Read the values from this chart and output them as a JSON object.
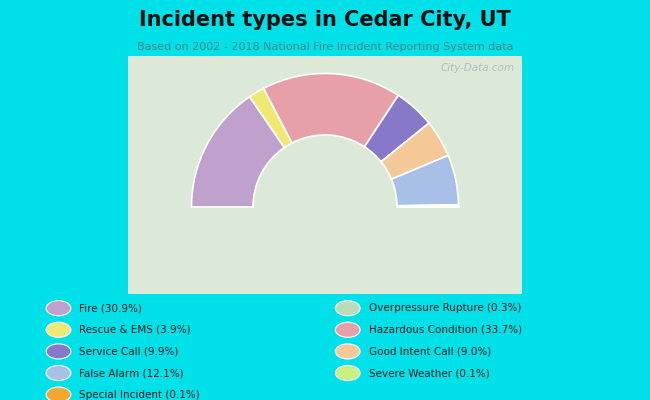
{
  "title": "Incident types in Cedar City, UT",
  "subtitle": "Based on 2002 - 2018 National Fire Incident Reporting System data",
  "background_outer": "#00e0e8",
  "background_chart_tl": "#e8ede0",
  "background_chart_tr": "#d8e8d8",
  "segments": [
    {
      "label": "Fire (30.9%)",
      "value": 30.9,
      "color": "#c0a0cc"
    },
    {
      "label": "Rescue & EMS (3.9%)",
      "value": 3.9,
      "color": "#f0e870"
    },
    {
      "label": "Hazardous Condition (33.7%)",
      "value": 33.7,
      "color": "#e8a0a8"
    },
    {
      "label": "Overpressure Rupture (0.3%)",
      "value": 0.3,
      "color": "#b8ddb8"
    },
    {
      "label": "Service Call (9.9%)",
      "value": 9.9,
      "color": "#8878c8"
    },
    {
      "label": "Good Intent Call (9.0%)",
      "value": 9.0,
      "color": "#f5c898"
    },
    {
      "label": "False Alarm (12.1%)",
      "value": 12.1,
      "color": "#a8c0e8"
    },
    {
      "label": "Severe Weather (0.1%)",
      "value": 0.1,
      "color": "#c8f080"
    },
    {
      "label": "Special Incident (0.1%)",
      "value": 0.1,
      "color": "#f0a830"
    }
  ],
  "legend_col1_labels": [
    "Fire (30.9%)",
    "Rescue & EMS (3.9%)",
    "Service Call (9.9%)",
    "False Alarm (12.1%)",
    "Special Incident (0.1%)"
  ],
  "legend_col1_colors": [
    "#c0a0cc",
    "#f0e870",
    "#8878c8",
    "#a8c0e8",
    "#f0a830"
  ],
  "legend_col2_labels": [
    "Overpressure Rupture (0.3%)",
    "Hazardous Condition (33.7%)",
    "Good Intent Call (9.0%)",
    "Severe Weather (0.1%)"
  ],
  "legend_col2_colors": [
    "#b8ddb8",
    "#e8a0a8",
    "#f5c898",
    "#c8f080"
  ]
}
